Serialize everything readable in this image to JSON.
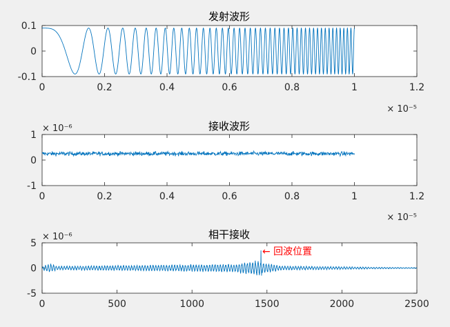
{
  "chart_data": [
    {
      "type": "line",
      "title": "发射波形",
      "xlabel": "",
      "ylabel": "",
      "xlim": [
        0,
        1.2
      ],
      "ylim": [
        -0.1,
        0.1
      ],
      "xticks": [
        "0",
        "0.2",
        "0.4",
        "0.6",
        "0.8",
        "1",
        "1.2"
      ],
      "yticks": [
        "-0.1",
        "0",
        "0.1"
      ],
      "x_exponent": "× 10⁻⁵",
      "y_exponent": "",
      "signal": "linear FM chirp, amplitude 0.09, from x=0 to x=1.0 (×1e-5), frequency rising from ~0 to ~90 cycles per 1e-5",
      "series": [
        {
          "color": "#0072bd",
          "x_range": [
            0,
            1.0
          ],
          "amplitude": 0.09
        }
      ],
      "grid": false
    },
    {
      "type": "line",
      "title": "接收波形",
      "xlabel": "",
      "ylabel": "",
      "xlim": [
        0,
        1.2
      ],
      "ylim": [
        -1,
        1
      ],
      "xticks": [
        "0",
        "0.2",
        "0.4",
        "0.6",
        "0.8",
        "1",
        "1.2"
      ],
      "yticks": [
        "-1",
        "0",
        "1"
      ],
      "x_exponent": "× 10⁻⁵",
      "y_exponent": "× 10⁻⁶",
      "signal": "noisy received signal centered at 0.25, spread approximately ±0.25, from x=0 to x=1.0",
      "series": [
        {
          "color": "#0072bd",
          "x_range": [
            0,
            1.0
          ],
          "center": 0.25,
          "spread": 0.25
        }
      ],
      "grid": false
    },
    {
      "type": "line",
      "title": "相干接收",
      "xlabel": "",
      "ylabel": "",
      "xlim": [
        0,
        2500
      ],
      "ylim": [
        -5,
        5
      ],
      "xticks": [
        "0",
        "500",
        "1000",
        "1500",
        "2000",
        "2500"
      ],
      "yticks": [
        "-5",
        "0",
        "5"
      ],
      "x_exponent": "",
      "y_exponent": "× 10⁻⁶",
      "signal": "correlation output with small oscillations, peak ≈ 3.5 at x ≈ 1460",
      "series": [
        {
          "color": "#0072bd",
          "x_range": [
            0,
            2500
          ],
          "peak_x": 1460,
          "peak_y": 3.5
        }
      ],
      "annotation": {
        "text": "← 回波位置",
        "x": 1460,
        "y": 3.5,
        "color": "#ff0000"
      },
      "grid": false
    }
  ]
}
